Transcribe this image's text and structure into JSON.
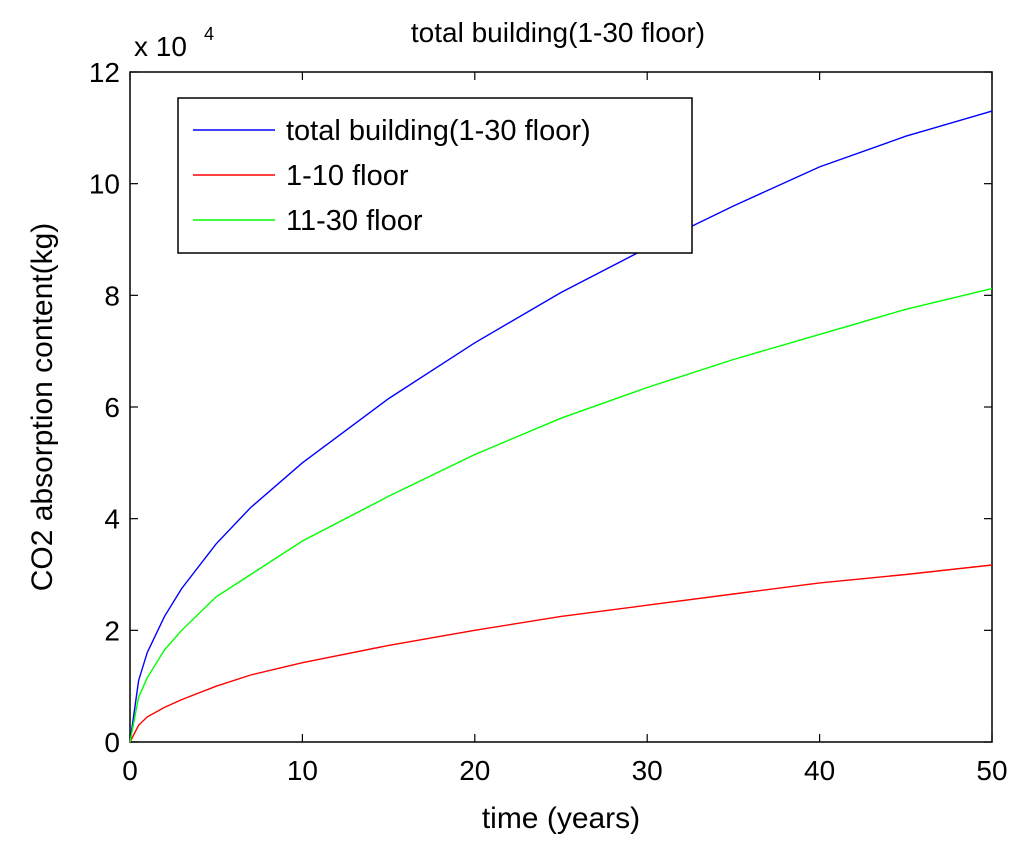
{
  "chart_data": {
    "type": "line",
    "title": "total building(1-30 floor)",
    "xlabel": "time (years)",
    "ylabel": "CO2 absorption content(kg)",
    "y_scale_label": "x 10",
    "y_scale_exponent": "4",
    "xlim": [
      0,
      50
    ],
    "ylim": [
      0,
      12
    ],
    "x_ticks": [
      0,
      10,
      20,
      30,
      40,
      50
    ],
    "y_ticks": [
      0,
      2,
      4,
      6,
      8,
      10,
      12
    ],
    "grid": false,
    "legend_position": "top-left",
    "series": [
      {
        "name": "total building(1-30 floor)",
        "color": "#0000ff",
        "x": [
          0,
          0.5,
          1,
          2,
          3,
          5,
          7,
          10,
          15,
          20,
          25,
          30,
          35,
          40,
          45,
          50
        ],
        "y": [
          0,
          1.1,
          1.6,
          2.25,
          2.75,
          3.55,
          4.2,
          5.0,
          6.15,
          7.15,
          8.05,
          8.85,
          9.6,
          10.3,
          10.85,
          11.3
        ]
      },
      {
        "name": "1-10 floor",
        "color": "#ff0000",
        "x": [
          0,
          0.5,
          1,
          2,
          3,
          5,
          7,
          10,
          15,
          20,
          25,
          30,
          35,
          40,
          45,
          50
        ],
        "y": [
          0,
          0.3,
          0.45,
          0.62,
          0.76,
          1.0,
          1.2,
          1.42,
          1.73,
          2.0,
          2.25,
          2.45,
          2.65,
          2.85,
          3.0,
          3.17
        ]
      },
      {
        "name": "11-30 floor",
        "color": "#00ff00",
        "x": [
          0,
          0.5,
          1,
          2,
          3,
          5,
          7,
          10,
          15,
          20,
          25,
          30,
          35,
          40,
          45,
          50
        ],
        "y": [
          0,
          0.8,
          1.15,
          1.65,
          2.0,
          2.6,
          3.0,
          3.6,
          4.4,
          5.15,
          5.8,
          6.35,
          6.85,
          7.3,
          7.75,
          8.12
        ]
      }
    ]
  }
}
